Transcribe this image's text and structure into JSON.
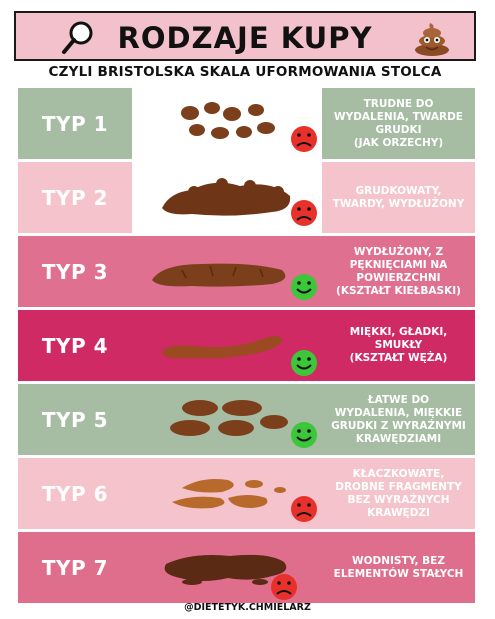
{
  "title": "RODZAJE KUPY",
  "subtitle": "CZYLI BRISTOLSKA SKALA UFORMOWANIA STOLCA",
  "footer": "@DIETETYK.CHMIELARZ",
  "colors": {
    "green": "#9fb89e",
    "light_pink": "#f4c1cb",
    "rose": "#df6d8c",
    "magenta": "#cf2a63",
    "dark_rose": "#de6e8c",
    "poop": "#7b3f1c",
    "poop_light": "#b8692c",
    "sad_face": "#e8312a",
    "happy_face": "#3cc63a"
  },
  "rows": [
    {
      "label": "TYP 1",
      "description": "TRUDNE DO\nWYDALENIA, TWARDE\nGRUDKI\n(JAK ORZECHY)",
      "face": "sad-face-icon",
      "bg": "#a6bca3"
    },
    {
      "label": "TYP 2",
      "description": "GRUDKOWATY,\nTWARDY, WYDŁUŻONY",
      "face": "sad-face-icon",
      "bg": "#f5c3cc"
    },
    {
      "label": "TYP 3",
      "description": "WYDŁUŻONY, Z\nPĘKNIĘCIAMI NA\nPOWIERZCHNI\n(KSZTAŁT KIEŁBASKI)",
      "face": "happy-face-icon",
      "bg": "#e07090"
    },
    {
      "label": "TYP 4",
      "description": "MIĘKKI, GŁADKI,\nSMUKŁY\n(KSZTAŁT WĘŻA)",
      "face": "happy-face-icon",
      "bg": "#cf2a63"
    },
    {
      "label": "TYP 5",
      "description": "ŁATWE DO\nWYDALENIA, MIĘKKIE\nGRUDKI Z WYRAŹNYMI\nKRAWĘDZIAMI",
      "face": "happy-face-icon",
      "bg": "#a6bca3"
    },
    {
      "label": "TYP 6",
      "description": "KŁACZKOWATE,\nDROBNE FRAGMENTY\nBEZ WYRAŹNYCH\nKRAWĘDZI",
      "face": "sad-face-icon",
      "bg": "#f5c3cc"
    },
    {
      "label": "TYP 7",
      "description": "WODNISTY, BEZ\nELEMENTÓW STAŁYCH",
      "face": "sad-face-icon",
      "bg": "#de6e8c"
    }
  ]
}
